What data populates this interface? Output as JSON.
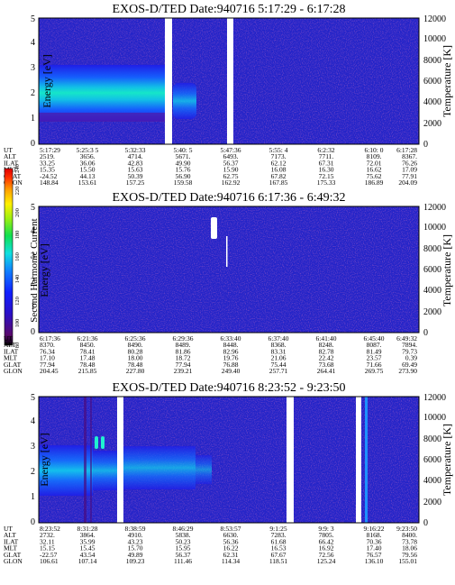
{
  "chart_data": {
    "type": "heatmap",
    "colorbar": {
      "label": "Second Harmonic Current",
      "ticks": [
        "80",
        "100",
        "120",
        "140",
        "160",
        "180",
        "200",
        "220",
        "240"
      ],
      "range": [
        80,
        240
      ]
    },
    "row_labels": [
      "UT",
      "ALT",
      "ILAT",
      "MLT",
      "GLAT",
      "GLON"
    ],
    "panels": [
      {
        "title": "EXOS-D/TED   Date:940716  5:17:29 - 6:17:28",
        "ylabel": "Energy [eV]",
        "ylabel2": "Temperature [K]",
        "ylim": [
          0,
          5
        ],
        "y_ticks": [
          "0",
          "1",
          "2",
          "3",
          "4",
          "5"
        ],
        "y2lim": [
          0,
          12000
        ],
        "y2_ticks": [
          "0",
          "2000",
          "4000",
          "6000",
          "8000",
          "10000",
          "12000"
        ],
        "columns": [
          [
            "5:17:29",
            "2519.",
            "33.25",
            "15.35",
            "-24.52",
            "148.84"
          ],
          [
            "5:25:3 5",
            "3656.",
            "36.06",
            "15.50",
            "44.13",
            "153.61"
          ],
          [
            "5:32:33",
            "4714.",
            "42.83",
            "15.63",
            "50.39",
            "157.25"
          ],
          [
            "5:40: 5",
            "5671.",
            "49.90",
            "15.76",
            "56.90",
            "159.58"
          ],
          [
            "5:47:36",
            "6493.",
            "56.37",
            "15.90",
            "62.75",
            "162.92"
          ],
          [
            "5:55: 4",
            "7173.",
            "62.12",
            "16.08",
            "67.82",
            "167.85"
          ],
          [
            "6:2:32",
            "7711.",
            "67.31",
            "16.30",
            "72.15",
            "175.33"
          ],
          [
            "6:10: 0",
            "8109.",
            "72.01",
            "16.62",
            "75.62",
            "186.89"
          ],
          [
            "6:17:28",
            "8367.",
            "76.26",
            "17.09",
            "77.91",
            "204.09"
          ]
        ]
      },
      {
        "title": "EXOS-D/TED   Date:940716  6:17:36 - 6:49:32",
        "ylabel": "Energy [eV]",
        "ylabel2": "Temperature [K]",
        "ylim": [
          0,
          5
        ],
        "y_ticks": [
          "0",
          "1",
          "2",
          "3",
          "4",
          "5"
        ],
        "y2lim": [
          0,
          12000
        ],
        "y2_ticks": [
          "0",
          "2000",
          "4000",
          "6000",
          "8000",
          "10000",
          "12000"
        ],
        "columns": [
          [
            "6:17:36",
            "8370.",
            "76.34",
            "17.10",
            "77.94",
            "204.45"
          ],
          [
            "6:21:36",
            "8450.",
            "78.41",
            "17.48",
            "78.48",
            "215.85"
          ],
          [
            "6:25:36",
            "8490.",
            "80.28",
            "18.00",
            "78.48",
            "227.80"
          ],
          [
            "6:29:36",
            "8489.",
            "81.86",
            "18.72",
            "77.94",
            "239.21"
          ],
          [
            "6:33:40",
            "8448.",
            "82.96",
            "19.76",
            "76.88",
            "249.40"
          ],
          [
            "6:37:40",
            "8368.",
            "83.31",
            "21.06",
            "75.44",
            "257.71"
          ],
          [
            "6:41:40",
            "8248.",
            "82.78",
            "22.42",
            "73.68",
            "264.41"
          ],
          [
            "6:45:40",
            "8087.",
            "81.49",
            "23.57",
            "71.66",
            "269.75"
          ],
          [
            "6:49:32",
            "7894.",
            "79.73",
            "0.39",
            "69.49",
            "273.90"
          ]
        ]
      },
      {
        "title": "EXOS-D/TED   Date:940716  8:23:52 - 9:23:50",
        "ylabel": "Energy [eV]",
        "ylabel2": "Temperature [K]",
        "ylim": [
          0,
          5
        ],
        "y_ticks": [
          "0",
          "1",
          "2",
          "3",
          "4",
          "5"
        ],
        "y2lim": [
          0,
          12000
        ],
        "y2_ticks": [
          "0",
          "2000",
          "4000",
          "6000",
          "8000",
          "10000",
          "12000"
        ],
        "columns": [
          [
            "8:23:52",
            "2732.",
            "32.11",
            "15.15",
            "-22.57",
            "106.61"
          ],
          [
            "8:31:28",
            "3864.",
            "35.99",
            "15.45",
            "43.54",
            "107.14"
          ],
          [
            "8:38:59",
            "4910.",
            "43.23",
            "15.70",
            "49.89",
            "109.23"
          ],
          [
            "8:46:29",
            "5838.",
            "50.23",
            "15.95",
            "56.37",
            "111.46"
          ],
          [
            "8:53:57",
            "6630.",
            "56.36",
            "16.22",
            "62.31",
            "114.34"
          ],
          [
            "9:1:25",
            "7283.",
            "61.68",
            "16.53",
            "67.67",
            "118.51"
          ],
          [
            "9:9: 3",
            "7805.",
            "66.42",
            "16.92",
            "72.56",
            "125.24"
          ],
          [
            "9:16:22",
            "8168.",
            "70.36",
            "17.40",
            "76.57",
            "136.10"
          ],
          [
            "9:23:50",
            "8400.",
            "73.78",
            "18.06",
            "79.56",
            "155.01"
          ]
        ]
      }
    ]
  }
}
